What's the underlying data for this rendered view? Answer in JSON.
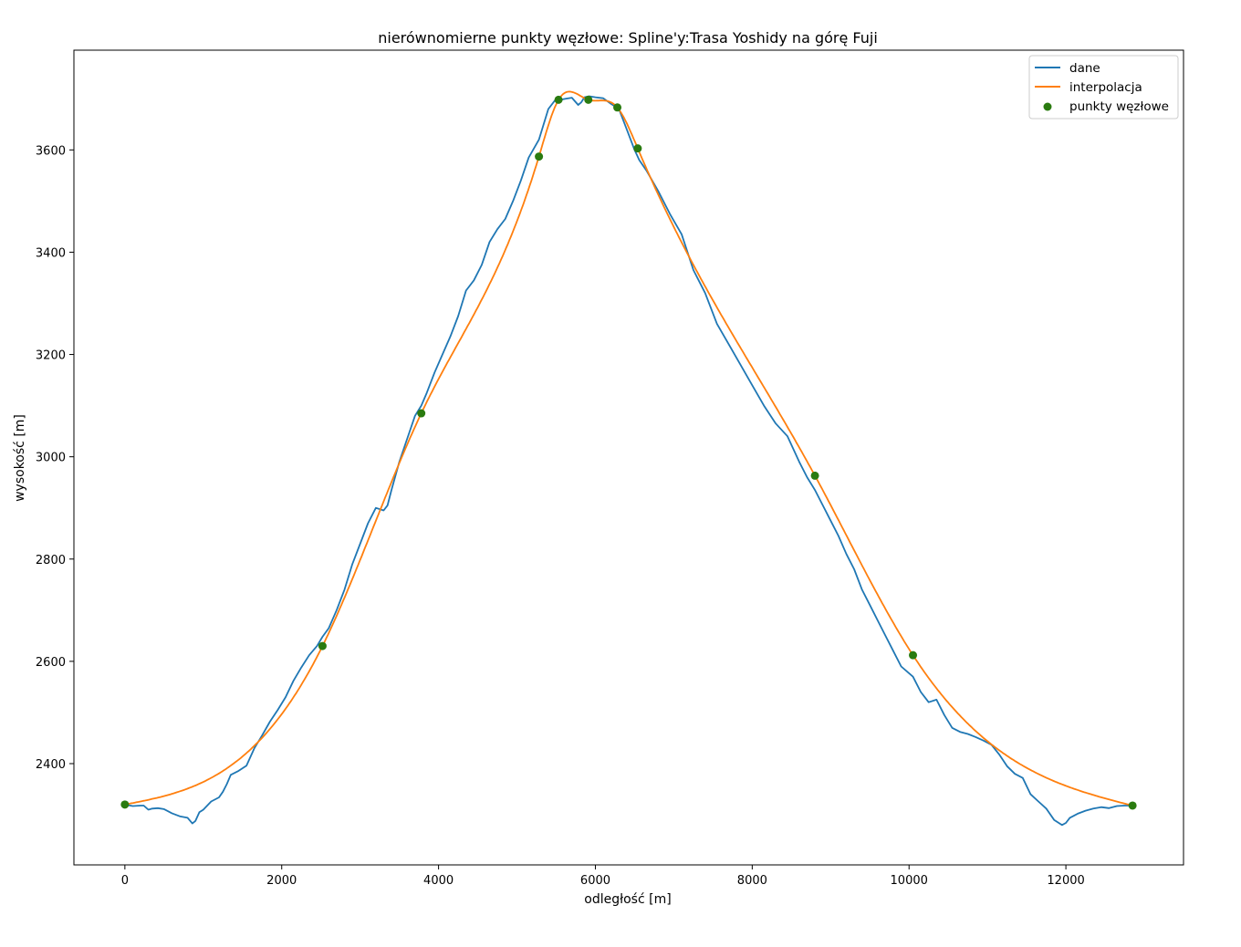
{
  "chart_data": {
    "type": "line",
    "title": "nierównomierne punkty węzłowe: Spline'y:Trasa Yoshidy na górę Fuji",
    "xlabel": "odległość [m]",
    "ylabel": "wysokość [m]",
    "xlim": [
      -650,
      13500
    ],
    "ylim": [
      2202,
      3795
    ],
    "xticks": [
      0,
      2000,
      4000,
      6000,
      8000,
      10000,
      12000
    ],
    "yticks": [
      2400,
      2600,
      2800,
      3000,
      3200,
      3400,
      3600
    ],
    "grid": false,
    "legend_position": "top-right",
    "series": [
      {
        "name": "dane",
        "type": "line",
        "color": "#1f77b4",
        "x": [
          0,
          100,
          200,
          240,
          300,
          350,
          420,
          500,
          600,
          650,
          700,
          800,
          860,
          900,
          950,
          1000,
          1100,
          1200,
          1250,
          1300,
          1350,
          1450,
          1550,
          1650,
          1750,
          1850,
          1950,
          2050,
          2150,
          2250,
          2350,
          2450,
          2520,
          2600,
          2700,
          2800,
          2900,
          3000,
          3100,
          3200,
          3300,
          3350,
          3400,
          3500,
          3600,
          3700,
          3780,
          3850,
          3950,
          4050,
          4150,
          4250,
          4350,
          4450,
          4550,
          4650,
          4750,
          4850,
          4950,
          5050,
          5150,
          5280,
          5400,
          5500,
          5550,
          5620,
          5700,
          5780,
          5820,
          5860,
          5920,
          6000,
          6100,
          6200,
          6300,
          6400,
          6500,
          6560,
          6650,
          6800,
          6950,
          7100,
          7250,
          7400,
          7550,
          7700,
          7850,
          8000,
          8150,
          8300,
          8450,
          8600,
          8700,
          8800,
          8900,
          9000,
          9100,
          9200,
          9300,
          9400,
          9500,
          9600,
          9700,
          9800,
          9900,
          10050,
          10150,
          10250,
          10350,
          10450,
          10550,
          10650,
          10750,
          10850,
          10950,
          11050,
          11150,
          11250,
          11350,
          11450,
          11550,
          11650,
          11750,
          11850,
          11950,
          12000,
          12050,
          12150,
          12250,
          12350,
          12450,
          12550,
          12650,
          12750,
          12850
        ],
        "y": [
          2320,
          2317,
          2318,
          2318,
          2310,
          2312,
          2313,
          2311,
          2303,
          2300,
          2297,
          2294,
          2283,
          2288,
          2305,
          2310,
          2326,
          2334,
          2345,
          2360,
          2378,
          2386,
          2396,
          2430,
          2455,
          2482,
          2505,
          2530,
          2562,
          2588,
          2612,
          2630,
          2648,
          2665,
          2700,
          2740,
          2790,
          2830,
          2870,
          2900,
          2895,
          2905,
          2935,
          2990,
          3035,
          3080,
          3100,
          3125,
          3165,
          3200,
          3235,
          3275,
          3325,
          3345,
          3375,
          3420,
          3445,
          3465,
          3500,
          3540,
          3585,
          3620,
          3680,
          3700,
          3698,
          3700,
          3702,
          3688,
          3693,
          3703,
          3705,
          3703,
          3701,
          3690,
          3680,
          3640,
          3600,
          3580,
          3560,
          3520,
          3475,
          3435,
          3365,
          3320,
          3260,
          3220,
          3180,
          3140,
          3100,
          3065,
          3040,
          2990,
          2960,
          2935,
          2905,
          2875,
          2845,
          2810,
          2780,
          2740,
          2710,
          2680,
          2650,
          2620,
          2590,
          2570,
          2540,
          2520,
          2525,
          2495,
          2470,
          2462,
          2458,
          2452,
          2445,
          2437,
          2418,
          2395,
          2380,
          2372,
          2340,
          2326,
          2312,
          2290,
          2280,
          2284,
          2294,
          2302,
          2308,
          2312,
          2315,
          2313,
          2317,
          2318,
          2318
        ]
      },
      {
        "name": "interpolacja",
        "type": "line",
        "color": "#ff7f0e",
        "knots_x": [
          0,
          2520,
          3780,
          5280,
          5530,
          5910,
          6280,
          6540,
          8800,
          10050,
          12850
        ],
        "knots_y": [
          2320,
          2630,
          3085,
          3587,
          3698,
          3698,
          3683,
          3603,
          2963,
          2612,
          2318
        ]
      },
      {
        "name": "punkty węzłowe",
        "type": "scatter",
        "color": "#2a7b10",
        "x": [
          0,
          2520,
          3780,
          5280,
          5530,
          5910,
          6280,
          6540,
          8800,
          10050,
          12850
        ],
        "y": [
          2320,
          2630,
          3085,
          3587,
          3698,
          3698,
          3683,
          3603,
          2963,
          2612,
          2318
        ]
      }
    ]
  }
}
